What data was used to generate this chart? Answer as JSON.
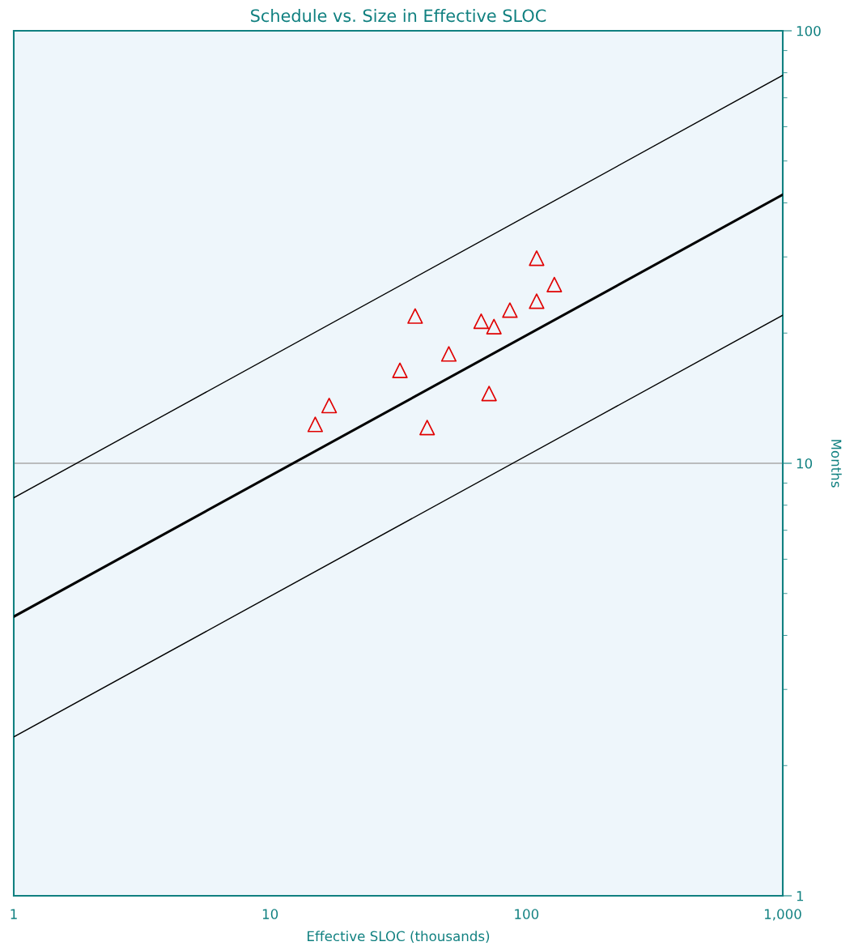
{
  "chart_data": {
    "type": "scatter",
    "title": "Schedule vs. Size in Effective SLOC",
    "xlabel": "Effective SLOC (thousands)",
    "ylabel": "Months",
    "log": "xy",
    "xlim": [
      1,
      1000
    ],
    "ylim": [
      1,
      100
    ],
    "xticks": [
      1,
      10,
      100,
      {
        "value": 1000,
        "label": "1,000"
      }
    ],
    "yticks": [
      1,
      10,
      100
    ],
    "grid": false,
    "legend": false,
    "ref_lines": [
      {
        "axis": "y",
        "value": 10,
        "label": null,
        "color": "#a8a8a8"
      }
    ],
    "series": [
      {
        "type": "line",
        "color": "#000000",
        "marker": "none",
        "x": [
          1,
          1000
        ],
        "values": [
          8.32,
          78.9
        ]
      },
      {
        "type": "line",
        "color": "#000000",
        "marker": "none",
        "x": [
          1,
          1000
        ],
        "values": [
          4.42,
          41.8
        ]
      },
      {
        "type": "line",
        "color": "#000000",
        "marker": "none",
        "x": [
          1,
          1000
        ],
        "values": [
          2.33,
          22.0
        ]
      },
      {
        "color": "#e00000",
        "marker": "triangle",
        "x": [
          15.0,
          17.0,
          32.1,
          36.8,
          41.0,
          49.8,
          66.6,
          74.7,
          71.5,
          86.2,
          109.6,
          109.6,
          128.5
        ],
        "values": [
          12.3,
          13.6,
          16.4,
          21.9,
          12.1,
          17.9,
          21.3,
          20.7,
          14.5,
          22.6,
          23.7,
          29.8,
          25.9
        ]
      }
    ]
  }
}
